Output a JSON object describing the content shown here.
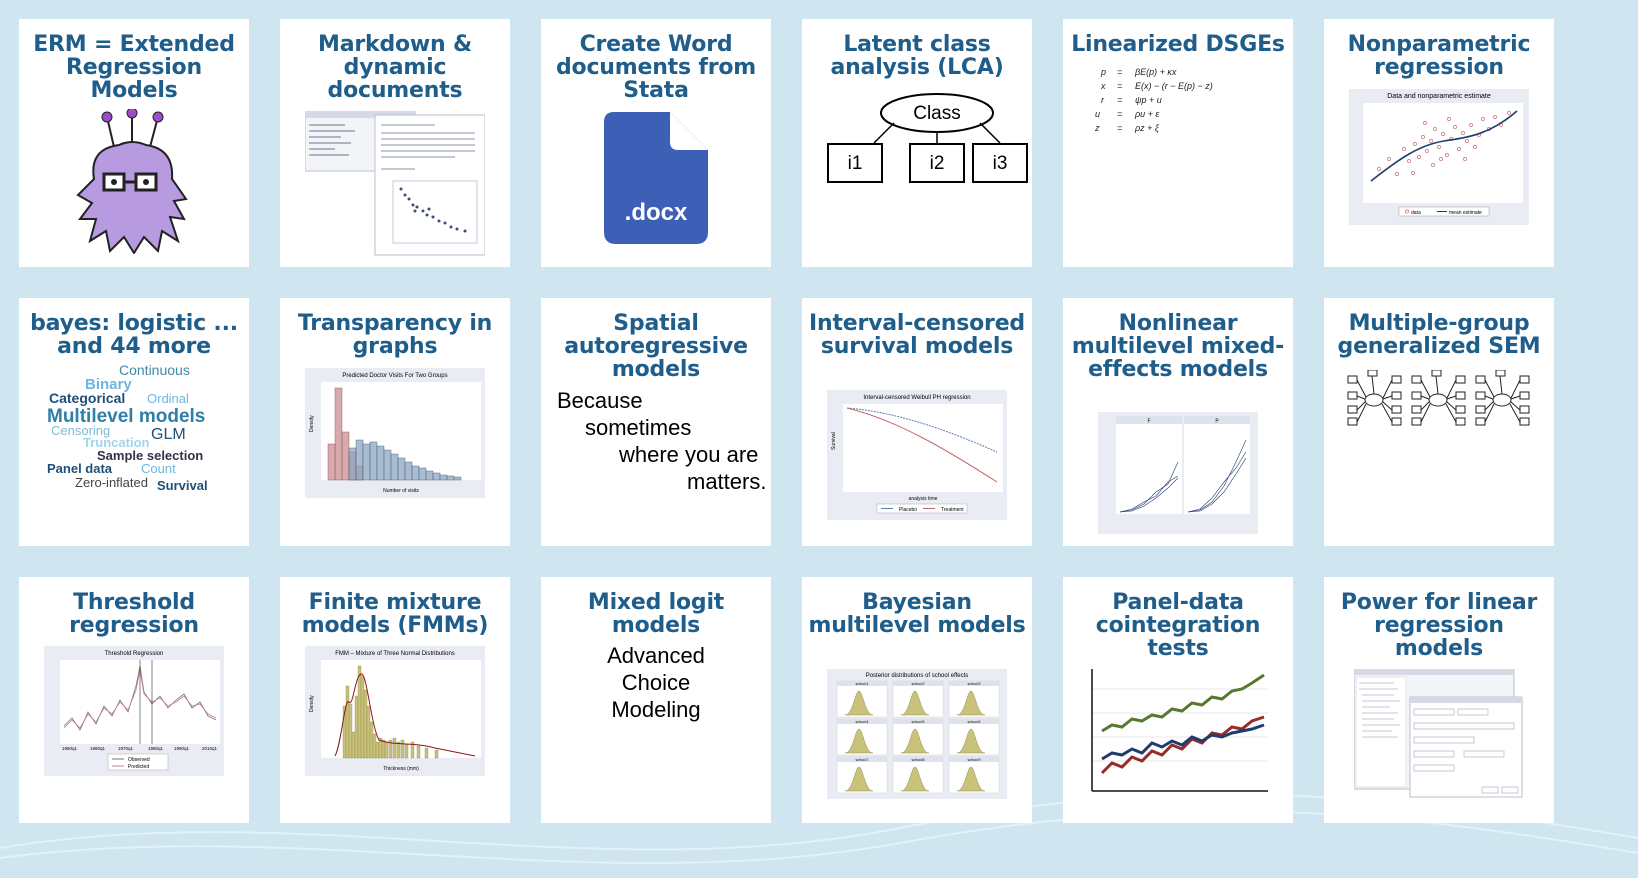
{
  "cards": [
    {
      "title": "ERM = Extended Regression Models"
    },
    {
      "title": "Markdown & dynamic documents"
    },
    {
      "title": "Create Word documents from Stata",
      "file_label": ".docx"
    },
    {
      "title": "Latent class analysis (LCA)",
      "root": "Class",
      "nodes": [
        "i1",
        "i2",
        "i3"
      ]
    },
    {
      "title": "Linearized DSGEs"
    },
    {
      "title": "Nonparametric regression",
      "chart_title": "Data and nonparametric estimate",
      "legend": [
        "data",
        "mean estimate"
      ]
    },
    {
      "title": "bayes: logistic ... and 44 more",
      "words": [
        "Continuous",
        "Binary",
        "Categorical",
        "Ordinal",
        "Multilevel models",
        "Censoring",
        "GLM",
        "Truncation",
        "Sample selection",
        "Panel data",
        "Count",
        "Zero-inflated",
        "Survival"
      ]
    },
    {
      "title": "Transparency in graphs",
      "chart_title": "Predicted Doctor Visits For Two Groups",
      "xlabel": "Number of visits",
      "ylabel": "Density"
    },
    {
      "title": "Spatial autoregressive models",
      "lines": [
        "Because",
        "sometimes",
        "where you are",
        "matters."
      ]
    },
    {
      "title": "Interval-censored survival models",
      "chart_title": "Interval-censored Weibull PH regression",
      "xlabel": "analysis time",
      "ylabel": "Survival",
      "legend": [
        "Placebo",
        "Treatment"
      ]
    },
    {
      "title": "Nonlinear multilevel mixed-effects models",
      "panels": [
        "F",
        "P"
      ]
    },
    {
      "title": "Multiple-group generalized SEM"
    },
    {
      "title": "Threshold regression",
      "chart_title": "Threshold Regression",
      "legend": [
        "Observed",
        "Predicted"
      ],
      "xticks": [
        "1960q1",
        "1980q1",
        "1970q1",
        "1980q1",
        "1990q1",
        "2010q1"
      ]
    },
    {
      "title": "Finite mixture models (FMMs)",
      "chart_title": "FMM – Mixture of Three Normal Distributions",
      "xlabel": "Thickness (mm)",
      "ylabel": "Density"
    },
    {
      "title": "Mixed logit models",
      "lines": [
        "Advanced",
        "Choice",
        "Modeling"
      ]
    },
    {
      "title": "Bayesian multilevel models",
      "chart_title": "Posterior distributions of school effects",
      "panels": [
        "school:1",
        "school:2",
        "school:3",
        "school:4",
        "school:5",
        "school:6",
        "school:7",
        "school:8",
        "school:9"
      ]
    },
    {
      "title": "Panel-data cointegration tests"
    },
    {
      "title": "Power for linear regression models"
    }
  ],
  "colors": {
    "title": "#1f5d8a",
    "page_bg": "#cfe5f0",
    "docx_blue": "#3d5fb5",
    "monster_purple": "#b79ae0"
  }
}
